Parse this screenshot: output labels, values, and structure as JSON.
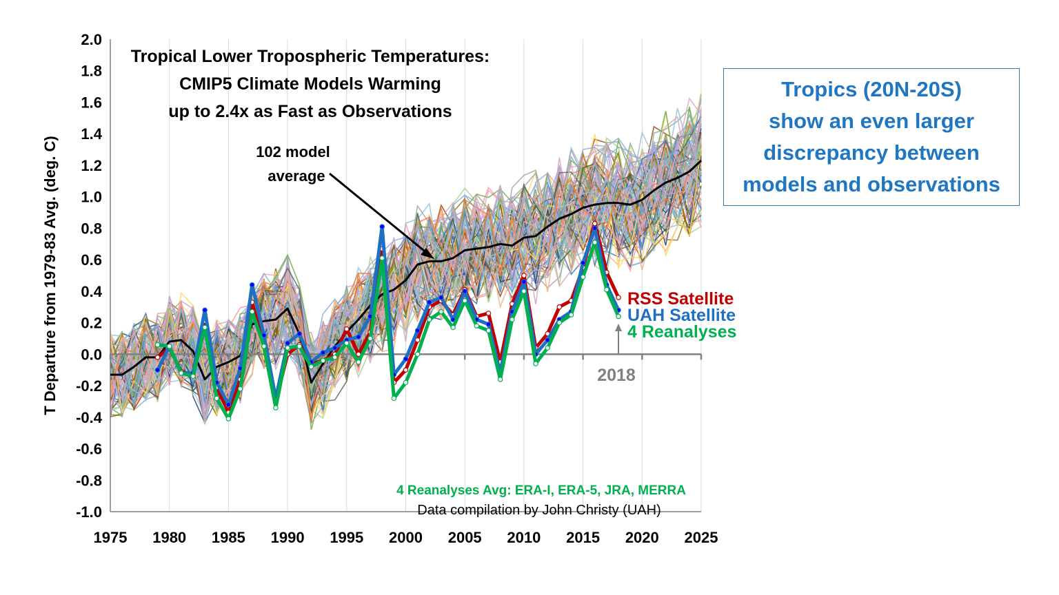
{
  "chart_data": {
    "type": "line",
    "title_lines": [
      "Tropical Lower Tropospheric Temperatures:",
      "CMIP5 Climate Models Warming",
      "up to 2.4x as Fast as Observations"
    ],
    "ylabel": "T Departure from 1979-83 Avg. (deg. C)",
    "xlabel": "",
    "xlim": [
      1975,
      2025
    ],
    "ylim": [
      -1.0,
      2.0
    ],
    "xticks": [
      1975,
      1980,
      1985,
      1990,
      1995,
      2000,
      2005,
      2010,
      2015,
      2020,
      2025
    ],
    "yticks": [
      "2.0",
      "1.8",
      "1.6",
      "1.4",
      "1.2",
      "1.0",
      "0.8",
      "0.6",
      "0.4",
      "0.2",
      "0.0",
      "-0.2",
      "-0.4",
      "-0.6",
      "-0.8",
      "-1.0"
    ],
    "grid": "vertical",
    "model_count": 102,
    "model_average_label": [
      "102 model",
      "average"
    ],
    "series": [
      {
        "name": "RSS Satellite",
        "color": "#c00000",
        "x": [
          1979,
          1980,
          1981,
          1982,
          1983,
          1984,
          1985,
          1986,
          1987,
          1988,
          1989,
          1990,
          1991,
          1992,
          1993,
          1994,
          1995,
          1996,
          1997,
          1998,
          1999,
          2000,
          2001,
          2002,
          2003,
          2004,
          2005,
          2006,
          2007,
          2008,
          2009,
          2010,
          2011,
          2012,
          2013,
          2014,
          2015,
          2016,
          2017,
          2018
        ],
        "y": [
          -0.02,
          0.04,
          -0.11,
          -0.13,
          0.21,
          -0.21,
          -0.37,
          -0.16,
          0.33,
          0.05,
          -0.3,
          0.0,
          0.06,
          -0.06,
          -0.04,
          0.0,
          0.16,
          0.0,
          0.14,
          0.67,
          -0.18,
          -0.1,
          0.09,
          0.3,
          0.34,
          0.25,
          0.41,
          0.24,
          0.26,
          -0.05,
          0.32,
          0.5,
          0.04,
          0.13,
          0.3,
          0.34,
          0.55,
          0.83,
          0.52,
          0.36
        ]
      },
      {
        "name": "UAH Satellite",
        "color": "#1f6fc5",
        "x": [
          1979,
          1980,
          1981,
          1982,
          1983,
          1984,
          1985,
          1986,
          1987,
          1988,
          1989,
          1990,
          1991,
          1992,
          1993,
          1994,
          1995,
          1996,
          1997,
          1998,
          1999,
          2000,
          2001,
          2002,
          2003,
          2004,
          2005,
          2006,
          2007,
          2008,
          2009,
          2010,
          2011,
          2012,
          2013,
          2014,
          2015,
          2016,
          2017,
          2018
        ],
        "y": [
          -0.1,
          0.05,
          -0.12,
          -0.12,
          0.28,
          -0.18,
          -0.32,
          -0.09,
          0.44,
          0.12,
          -0.28,
          0.07,
          0.13,
          -0.05,
          0.01,
          0.04,
          0.09,
          0.11,
          0.24,
          0.81,
          -0.13,
          -0.03,
          0.15,
          0.33,
          0.36,
          0.22,
          0.4,
          0.22,
          0.19,
          -0.12,
          0.27,
          0.46,
          0.0,
          0.09,
          0.22,
          0.27,
          0.58,
          0.8,
          0.44,
          0.28
        ]
      },
      {
        "name": "4 Reanalyses",
        "color": "#00b050",
        "x": [
          1979,
          1980,
          1981,
          1982,
          1983,
          1984,
          1985,
          1986,
          1987,
          1988,
          1989,
          1990,
          1991,
          1992,
          1993,
          1994,
          1995,
          1996,
          1997,
          1998,
          1999,
          2000,
          2001,
          2002,
          2003,
          2004,
          2005,
          2006,
          2007,
          2008,
          2009,
          2010,
          2011,
          2012,
          2013,
          2014,
          2015,
          2016,
          2017,
          2018
        ],
        "y": [
          0.06,
          0.05,
          -0.12,
          -0.14,
          0.17,
          -0.28,
          -0.41,
          -0.22,
          0.27,
          0.05,
          -0.34,
          0.04,
          0.05,
          -0.08,
          -0.04,
          -0.02,
          0.07,
          -0.05,
          0.1,
          0.61,
          -0.28,
          -0.18,
          0.0,
          0.22,
          0.27,
          0.17,
          0.34,
          0.18,
          0.15,
          -0.16,
          0.22,
          0.4,
          -0.06,
          0.04,
          0.2,
          0.25,
          0.49,
          0.71,
          0.41,
          0.24
        ]
      },
      {
        "name": "102 model average",
        "color": "#000000",
        "x": [
          1975,
          1976,
          1977,
          1978,
          1979,
          1980,
          1981,
          1982,
          1983,
          1984,
          1985,
          1986,
          1987,
          1988,
          1989,
          1990,
          1991,
          1992,
          1993,
          1994,
          1995,
          1996,
          1997,
          1998,
          1999,
          2000,
          2001,
          2002,
          2003,
          2004,
          2005,
          2006,
          2007,
          2008,
          2009,
          2010,
          2011,
          2012,
          2013,
          2014,
          2015,
          2016,
          2017,
          2018,
          2019,
          2020,
          2021,
          2022,
          2023,
          2024,
          2025
        ],
        "y": [
          -0.13,
          -0.13,
          -0.08,
          -0.02,
          -0.02,
          0.08,
          0.09,
          0.02,
          -0.16,
          -0.08,
          -0.05,
          -0.01,
          0.19,
          0.21,
          0.22,
          0.29,
          0.13,
          -0.18,
          -0.06,
          0.05,
          0.14,
          0.22,
          0.31,
          0.38,
          0.41,
          0.47,
          0.57,
          0.59,
          0.59,
          0.61,
          0.66,
          0.67,
          0.68,
          0.7,
          0.69,
          0.74,
          0.75,
          0.81,
          0.86,
          0.89,
          0.93,
          0.95,
          0.96,
          0.96,
          0.95,
          0.98,
          1.04,
          1.09,
          1.12,
          1.16,
          1.23
        ]
      }
    ],
    "model_spaghetti_note": "",
    "last_year_marker": "2018",
    "reanalyses_note": "4 Reanalyses Avg: ERA-I, ERA-5, JRA, MERRA",
    "credit": "Data compilation by John Christy (UAH)"
  },
  "callout": {
    "lines": [
      "Tropics (20N-20S)",
      "show an even larger",
      "discrepancy between",
      "models and observations"
    ]
  },
  "colors": {
    "rss": "#c00000",
    "uah": "#1f6fc5",
    "reanalyses": "#00b050",
    "average": "#000000",
    "marker_year": "#808080",
    "callout_text": "#1f77c4",
    "callout_border": "#2e75b6"
  }
}
